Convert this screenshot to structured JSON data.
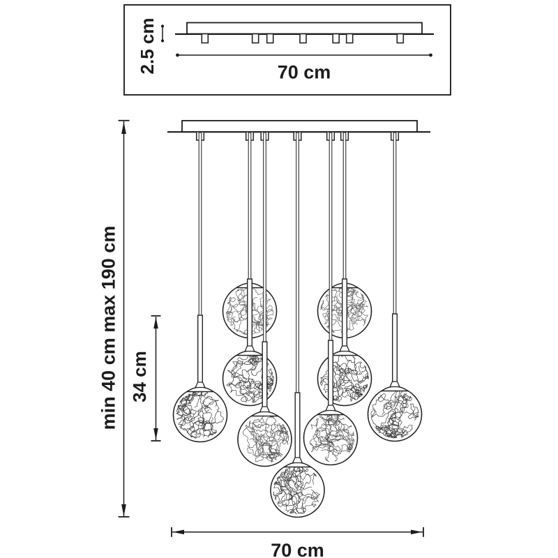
{
  "colors": {
    "line": "#1a1a1a",
    "background": "#ffffff"
  },
  "top_view": {
    "height_label": "2.5 cm",
    "width_label": "70 cm",
    "mounting_tab_count": 7
  },
  "front_view": {
    "suspension_label": "min 40 cm max 190 cm",
    "shade_unit_label": "34 cm",
    "width_label": "70 cm",
    "shade_count": 9,
    "cord_count": 7
  }
}
